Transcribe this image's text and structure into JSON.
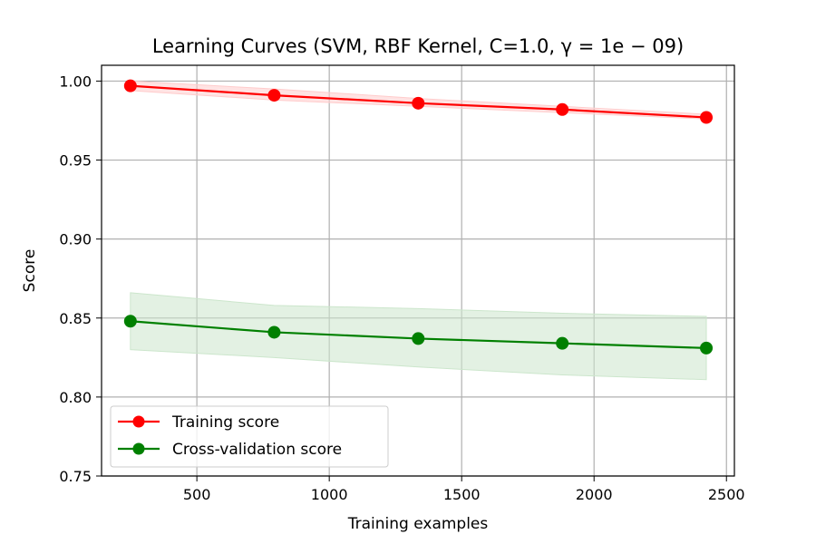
{
  "chart_data": {
    "type": "line",
    "title": "Learning Curves (SVM, RBF Kernel, C=1.0, γ = 1e − 09)",
    "xlabel": "Training examples",
    "ylabel": "Score",
    "xlim": [
      140,
      2530
    ],
    "ylim": [
      0.75,
      1.01
    ],
    "xticks": [
      500,
      1000,
      1500,
      2000,
      2500
    ],
    "xtick_labels": [
      "500",
      "1000",
      "1500",
      "2000",
      "2500"
    ],
    "yticks": [
      0.75,
      0.8,
      0.85,
      0.9,
      0.95,
      1.0
    ],
    "ytick_labels": [
      "0.75",
      "0.80",
      "0.85",
      "0.90",
      "0.95",
      "1.00"
    ],
    "grid": true,
    "legend_position": "lower-left",
    "x": [
      249,
      792,
      1336,
      1880,
      2424
    ],
    "series": [
      {
        "name": "Training score",
        "color": "#ff0000",
        "band_color": "#ffcccc",
        "marker": "circle",
        "values": [
          0.997,
          0.991,
          0.986,
          0.982,
          0.977
        ],
        "lower": [
          0.994,
          0.988,
          0.984,
          0.98,
          0.976
        ],
        "upper": [
          1.0,
          0.995,
          0.989,
          0.984,
          0.979
        ]
      },
      {
        "name": "Cross-validation score",
        "color": "#008000",
        "band_color": "#cce6cc",
        "marker": "circle",
        "values": [
          0.848,
          0.841,
          0.837,
          0.834,
          0.831
        ],
        "lower": [
          0.83,
          0.825,
          0.819,
          0.814,
          0.811
        ],
        "upper": [
          0.866,
          0.858,
          0.856,
          0.853,
          0.851
        ]
      }
    ]
  }
}
